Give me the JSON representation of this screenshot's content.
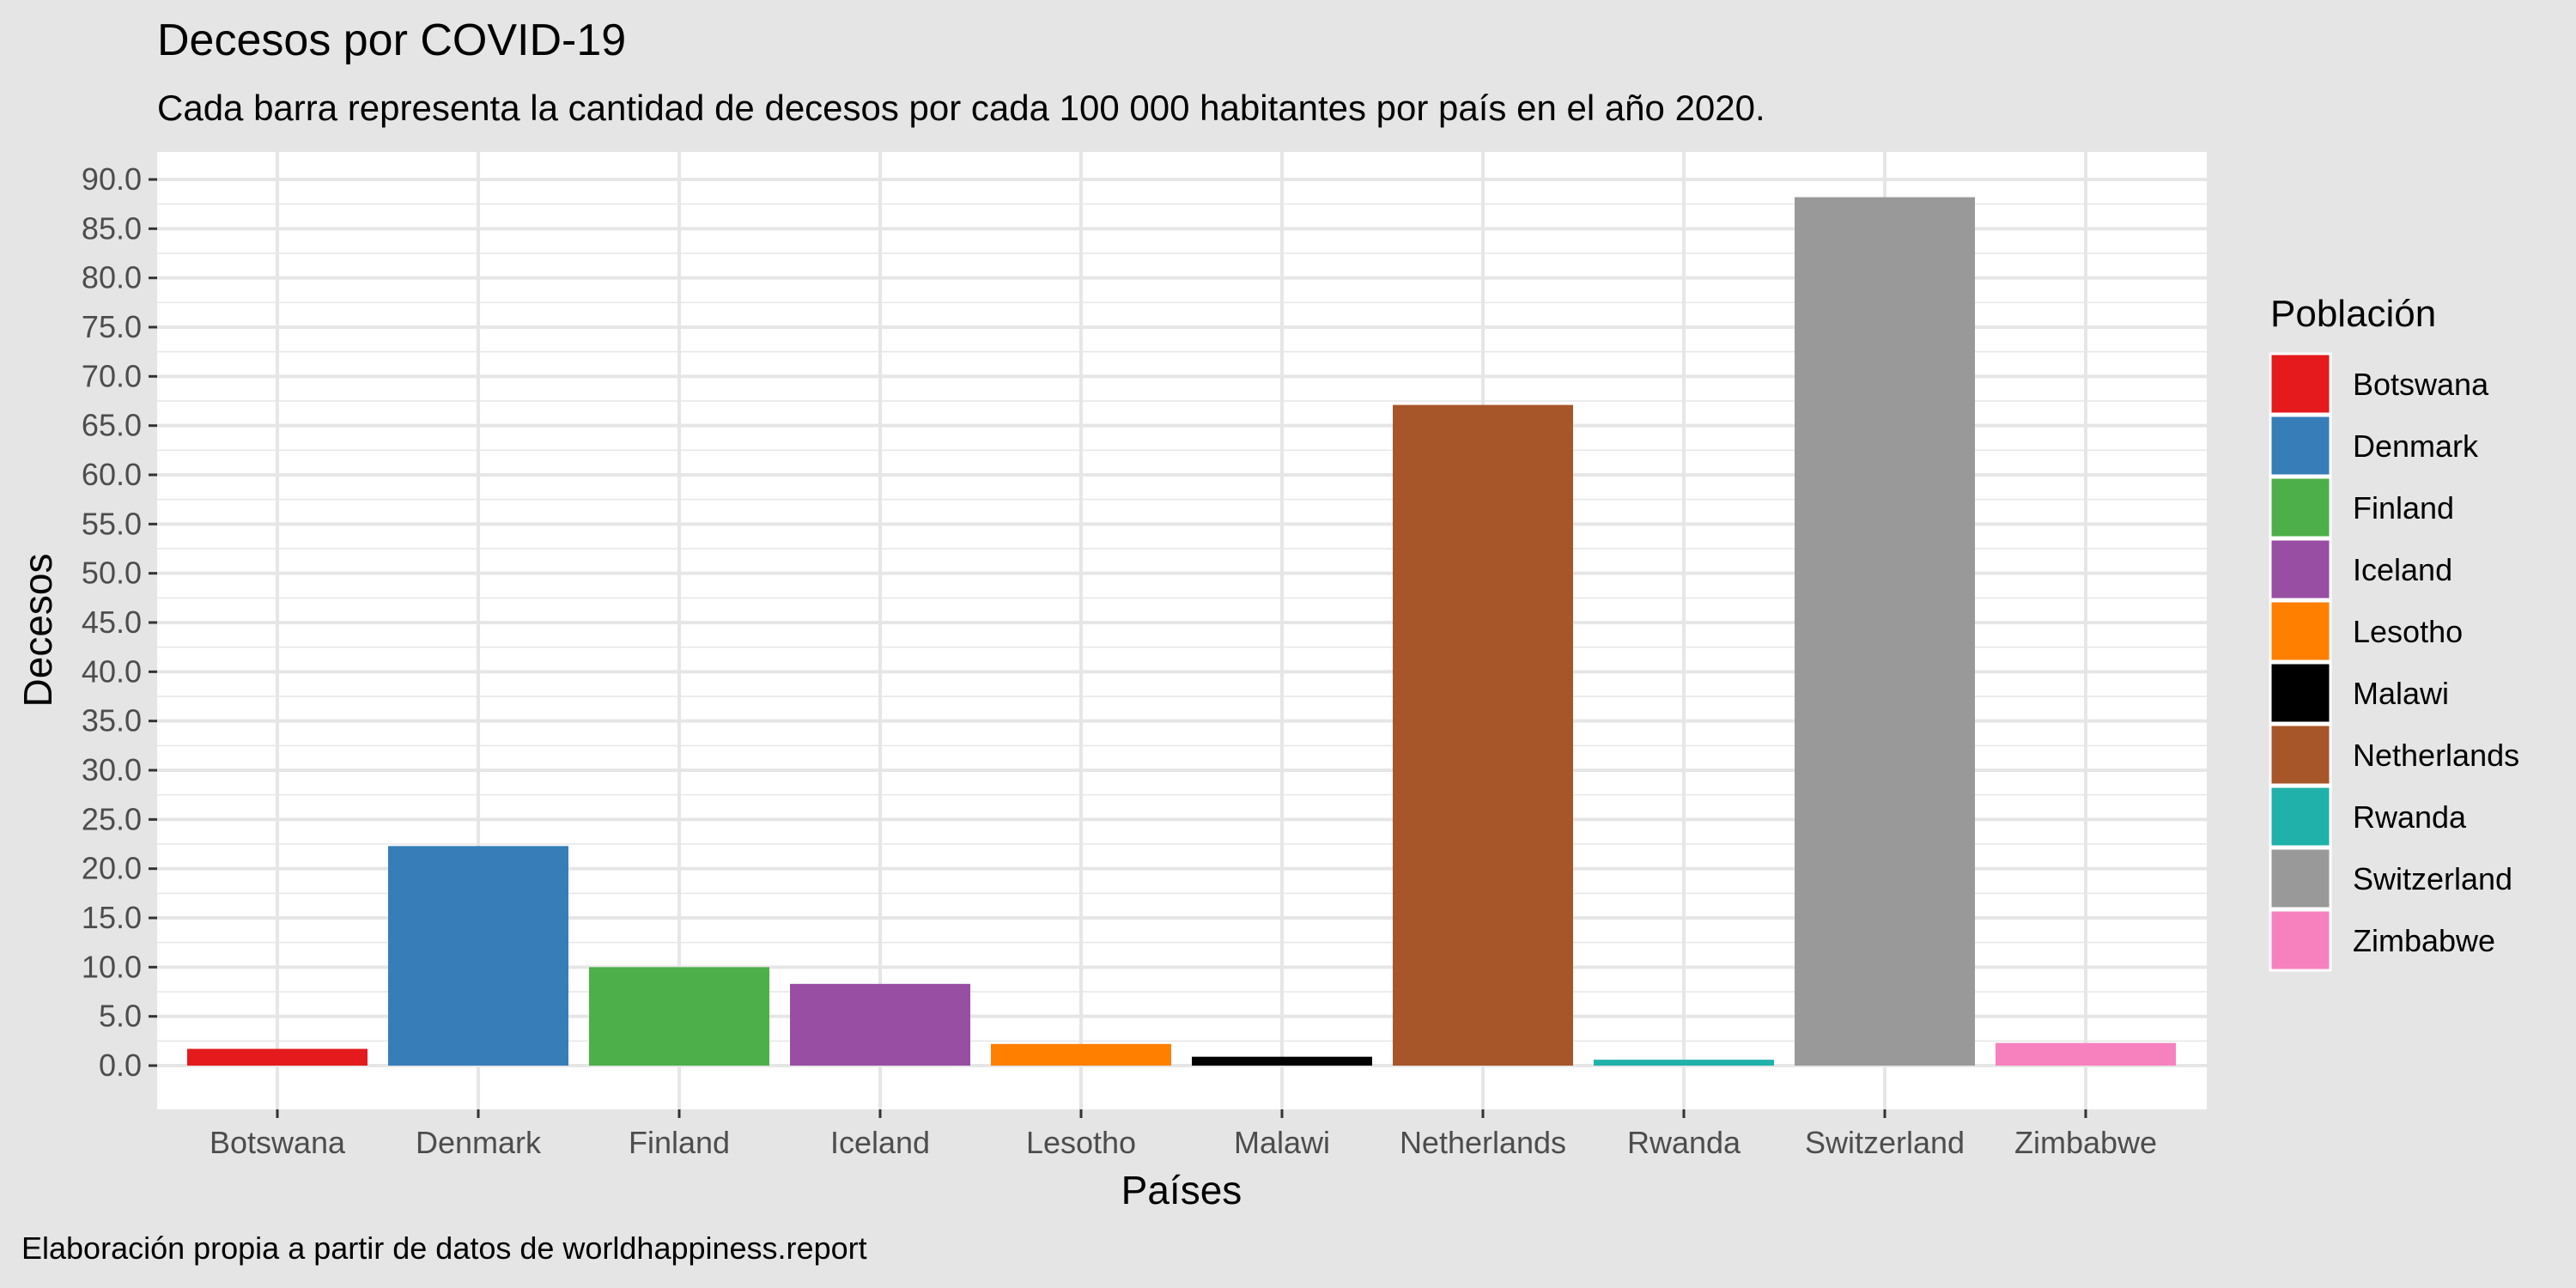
{
  "chart_data": {
    "type": "bar",
    "title": "Decesos por COVID-19",
    "subtitle": "Cada barra representa la cantidad de decesos por cada 100 000 habitantes por país en el año 2020.",
    "caption": "Elaboración propia a partir de datos de worldhappiness.report",
    "xlabel": "Países",
    "ylabel": "Decesos",
    "categories": [
      "Botswana",
      "Denmark",
      "Finland",
      "Iceland",
      "Lesotho",
      "Malawi",
      "Netherlands",
      "Rwanda",
      "Switzerland",
      "Zimbabwe"
    ],
    "values": [
      1.7,
      22.3,
      10.0,
      8.3,
      2.2,
      0.9,
      67.1,
      0.6,
      88.2,
      2.3
    ],
    "colors": [
      "#E41A1C",
      "#377EB8",
      "#4DAF4A",
      "#984EA3",
      "#FF7F00",
      "#000000",
      "#A65628",
      "#20B2AA",
      "#999999",
      "#F781BF"
    ],
    "ylim": [
      0,
      90
    ],
    "yticks": [
      "0.0",
      "5.0",
      "10.0",
      "15.0",
      "20.0",
      "25.0",
      "30.0",
      "35.0",
      "40.0",
      "45.0",
      "50.0",
      "55.0",
      "60.0",
      "65.0",
      "70.0",
      "75.0",
      "80.0",
      "85.0",
      "90.0"
    ],
    "grid": true,
    "legend": {
      "title": "Población",
      "placement": "right",
      "entries": [
        "Botswana",
        "Denmark",
        "Finland",
        "Iceland",
        "Lesotho",
        "Malawi",
        "Netherlands",
        "Rwanda",
        "Switzerland",
        "Zimbabwe"
      ]
    },
    "panel_background": "#ffffff",
    "page_background": "#e5e5e5",
    "grid_color": "#e6e6e6"
  }
}
